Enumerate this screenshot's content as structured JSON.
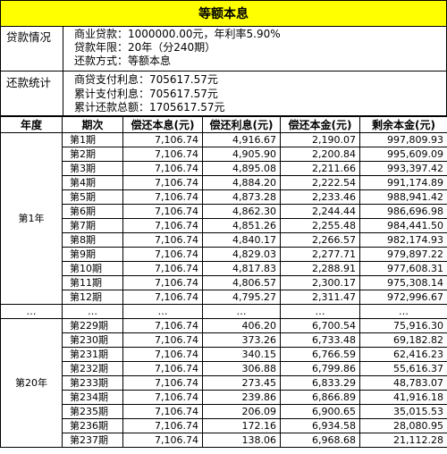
{
  "title": "等额本息",
  "loan": {
    "label": "贷款情况",
    "lines": [
      "商业贷款：1000000.00元，年利率5.90%",
      "贷款年限：20年（分240期）",
      "还款方式：等额本息"
    ]
  },
  "stats": {
    "label": "还款统计",
    "lines": [
      "商贷支付利息：705617.57元",
      "累计支付利息：705617.57元",
      "累计还款总额：1705617.57元"
    ]
  },
  "table": {
    "headers": [
      "年度",
      "期次",
      "偿还本息(元)",
      "偿还利息(元)",
      "偿还本金(元)",
      "剩余本金(元)"
    ],
    "year1_label": "第1年",
    "year20_label": "第20年",
    "ellipsis": "…",
    "year1_rows": [
      [
        "第1期",
        "7,106.74",
        "4,916.67",
        "2,190.07",
        "997,809.93"
      ],
      [
        "第2期",
        "7,106.74",
        "4,905.90",
        "2,200.84",
        "995,609.09"
      ],
      [
        "第3期",
        "7,106.74",
        "4,895.08",
        "2,211.66",
        "993,397.42"
      ],
      [
        "第4期",
        "7,106.74",
        "4,884.20",
        "2,222.54",
        "991,174.89"
      ],
      [
        "第5期",
        "7,106.74",
        "4,873.28",
        "2,233.46",
        "988,941.42"
      ],
      [
        "第6期",
        "7,106.74",
        "4,862.30",
        "2,244.44",
        "986,696.98"
      ],
      [
        "第7期",
        "7,106.74",
        "4,851.26",
        "2,255.48",
        "984,441.50"
      ],
      [
        "第8期",
        "7,106.74",
        "4,840.17",
        "2,266.57",
        "982,174.93"
      ],
      [
        "第9期",
        "7,106.74",
        "4,829.03",
        "2,277.71",
        "979,897.22"
      ],
      [
        "第10期",
        "7,106.74",
        "4,817.83",
        "2,288.91",
        "977,608.31"
      ],
      [
        "第11期",
        "7,106.74",
        "4,806.57",
        "2,300.17",
        "975,308.14"
      ],
      [
        "第12期",
        "7,106.74",
        "4,795.27",
        "2,311.47",
        "972,996.67"
      ]
    ],
    "year20_rows": [
      [
        "第229期",
        "7,106.74",
        "406.20",
        "6,700.54",
        "75,916.30"
      ],
      [
        "第230期",
        "7,106.74",
        "373.26",
        "6,733.48",
        "69,182.82"
      ],
      [
        "第231期",
        "7,106.74",
        "340.15",
        "6,766.59",
        "62,416.23"
      ],
      [
        "第232期",
        "7,106.74",
        "306.88",
        "6,799.86",
        "55,616.37"
      ],
      [
        "第233期",
        "7,106.74",
        "273.45",
        "6,833.29",
        "48,783.07"
      ],
      [
        "第234期",
        "7,106.74",
        "239.86",
        "6,866.89",
        "41,916.18"
      ],
      [
        "第235期",
        "7,106.74",
        "206.09",
        "6,900.65",
        "35,015.53"
      ],
      [
        "第236期",
        "7,106.74",
        "172.16",
        "6,934.58",
        "28,080.95"
      ],
      [
        "第237期",
        "7,106.74",
        "138.06",
        "6,968.68",
        "21,112.28"
      ]
    ]
  }
}
